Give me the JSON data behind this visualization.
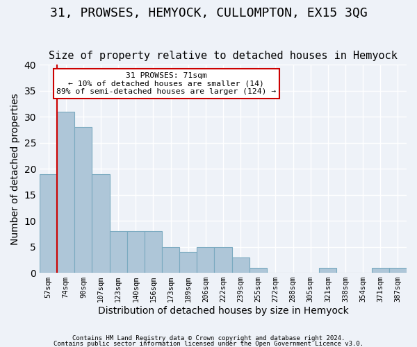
{
  "title": "31, PROWSES, HEMYOCK, CULLOMPTON, EX15 3QG",
  "subtitle": "Size of property relative to detached houses in Hemyock",
  "xlabel": "Distribution of detached houses by size in Hemyock",
  "ylabel": "Number of detached properties",
  "categories": [
    "57sqm",
    "74sqm",
    "90sqm",
    "107sqm",
    "123sqm",
    "140sqm",
    "156sqm",
    "173sqm",
    "189sqm",
    "206sqm",
    "222sqm",
    "239sqm",
    "255sqm",
    "272sqm",
    "288sqm",
    "305sqm",
    "321sqm",
    "338sqm",
    "354sqm",
    "371sqm",
    "387sqm"
  ],
  "values": [
    19,
    31,
    28,
    19,
    8,
    8,
    8,
    5,
    4,
    5,
    5,
    3,
    1,
    0,
    0,
    0,
    1,
    0,
    0,
    1,
    1
  ],
  "bar_color": "#aec6d8",
  "bar_edgecolor": "#7aaac0",
  "background_color": "#eef2f8",
  "grid_color": "#ffffff",
  "marker_line_color": "#cc0000",
  "annotation_text": "31 PROWSES: 71sqm\n← 10% of detached houses are smaller (14)\n89% of semi-detached houses are larger (124) →",
  "annotation_box_color": "#ffffff",
  "annotation_box_edgecolor": "#cc0000",
  "footnote1": "Contains HM Land Registry data © Crown copyright and database right 2024.",
  "footnote2": "Contains public sector information licensed under the Open Government Licence v3.0.",
  "ylim": [
    0,
    40
  ],
  "title_fontsize": 13,
  "subtitle_fontsize": 11,
  "xlabel_fontsize": 10,
  "ylabel_fontsize": 10
}
